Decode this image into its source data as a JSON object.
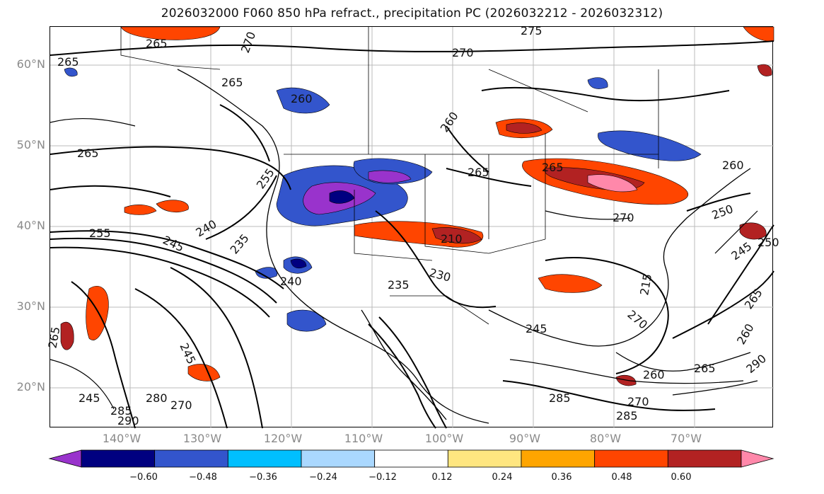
{
  "title": "2026032000 F060 850 hPa refract., precipitation PC (2026032212 - 2026032312)",
  "lat_labels": [
    "60°N",
    "50°N",
    "40°N",
    "30°N",
    "20°N"
  ],
  "lon_labels": [
    "140°W",
    "130°W",
    "120°W",
    "110°W",
    "100°W",
    "90°W",
    "80°W",
    "70°W"
  ],
  "colorbar": {
    "colors": [
      "#9933cc",
      "#000080",
      "#3355cc",
      "#00bfff",
      "#aad8ff",
      "#ffffff",
      "#ffe680",
      "#ffa500",
      "#ff4500",
      "#b22222",
      "#ff88aa"
    ],
    "ticks": [
      "−0.60",
      "−0.48",
      "−0.36",
      "−0.24",
      "−0.12",
      "0.12",
      "0.24",
      "0.36",
      "0.48",
      "0.60"
    ]
  },
  "contour_labels": [
    "265",
    "265",
    "270",
    "275",
    "270",
    "265",
    "260",
    "260",
    "265",
    "265",
    "265",
    "260",
    "255",
    "255",
    "240",
    "245",
    "235",
    "250",
    "245",
    "270",
    "265",
    "260",
    "250",
    "245",
    "230",
    "235",
    "240",
    "245",
    "245",
    "270",
    "260",
    "285",
    "290",
    "280",
    "270",
    "285",
    "265",
    "290",
    "285",
    "210",
    "265",
    "215",
    "270"
  ]
}
